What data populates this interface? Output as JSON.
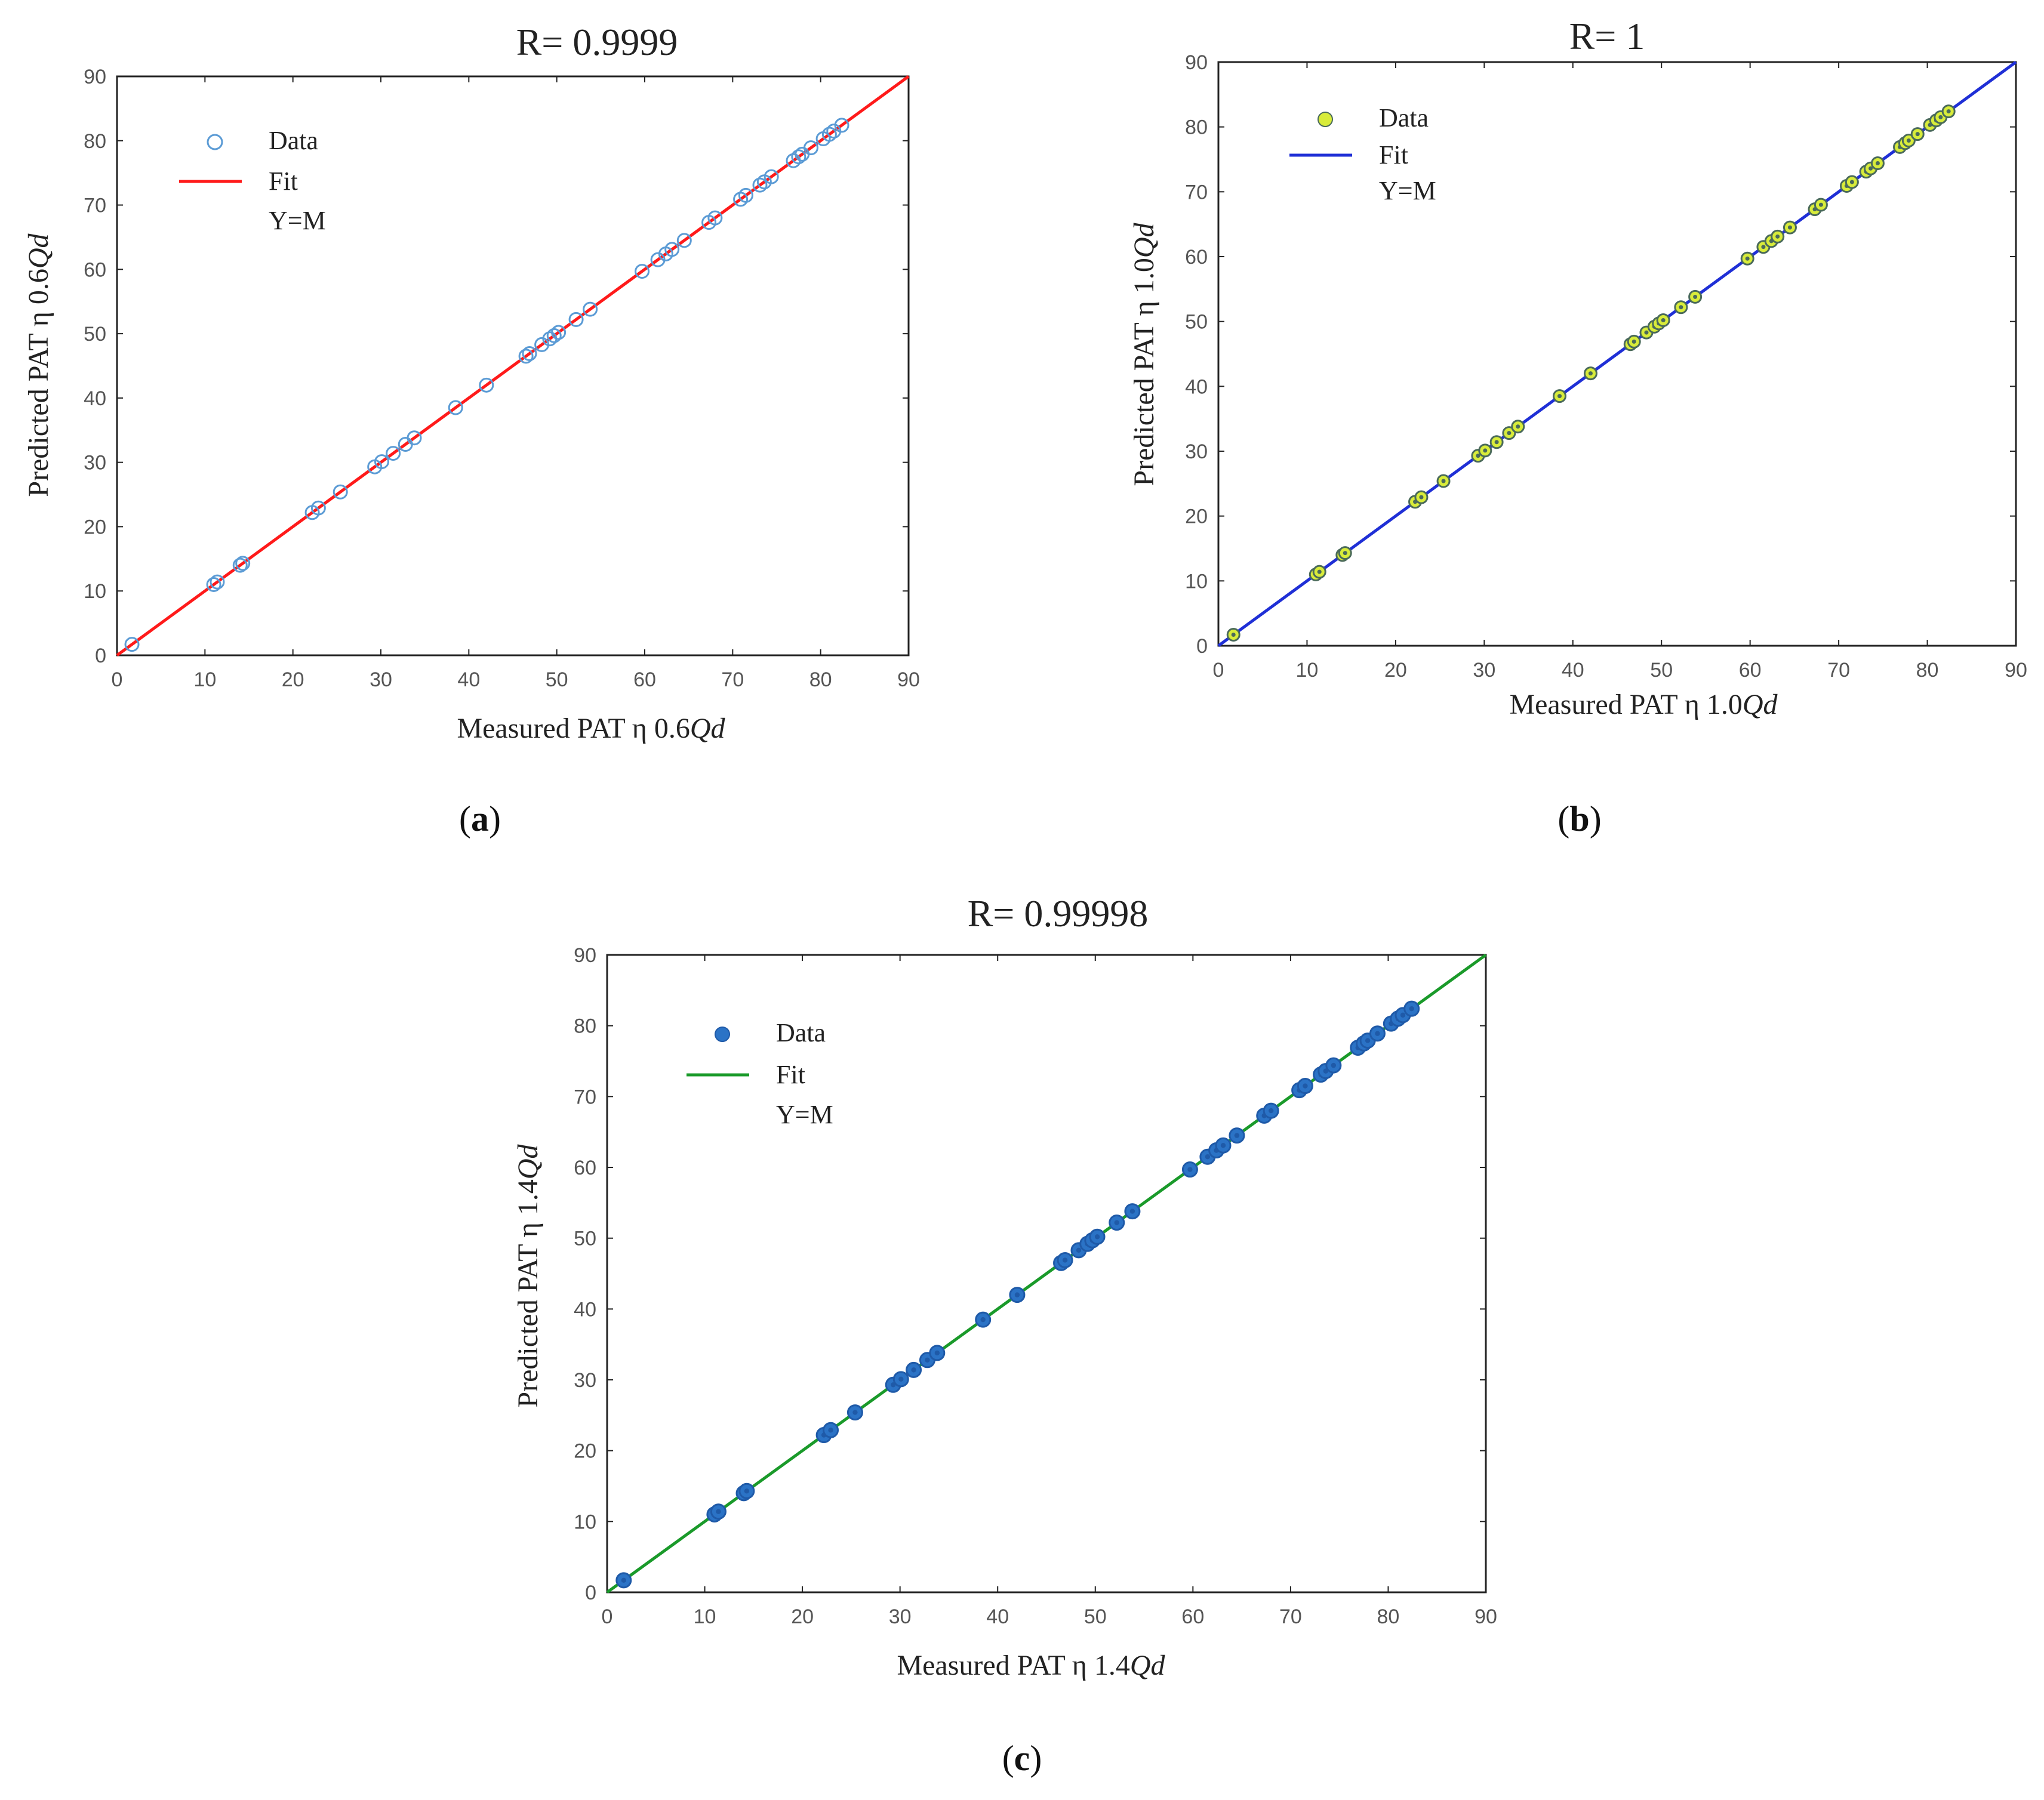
{
  "figure": {
    "panels": [
      {
        "label_open": "(",
        "label_letter": "a",
        "label_close": ")"
      },
      {
        "label_open": "(",
        "label_letter": "b",
        "label_close": ")"
      },
      {
        "label_open": "(",
        "label_letter": "c",
        "label_close": ")"
      }
    ]
  },
  "chart_data": [
    {
      "type": "scatter",
      "panel": "a",
      "title": "R= 0.9999",
      "xlabel_text": "Measured PAT η 0.6",
      "xlabel_ital": "Qd",
      "ylabel_text": "Predicted PAT η 0.6",
      "ylabel_ital": "Qd",
      "xlim": [
        0,
        90
      ],
      "ylim": [
        0,
        90
      ],
      "xticks": [
        "0",
        "10",
        "20",
        "30",
        "40",
        "50",
        "60",
        "70",
        "80",
        "90"
      ],
      "yticks": [
        "0",
        "10",
        "20",
        "30",
        "40",
        "50",
        "60",
        "70",
        "80",
        "90"
      ],
      "grid": false,
      "legend_position": "top-left",
      "legend": {
        "data": "Data",
        "fit": "Fit",
        "ref": "Y=M"
      },
      "colors": {
        "fit": "#ff1a1a",
        "marker_stroke": "#5b9bd5",
        "marker_fill": "none",
        "marker_inner": "#5b9bd5"
      },
      "series": [
        {
          "name": "Data",
          "x": [
            1.7,
            11.0,
            11.4,
            14.0,
            14.3,
            22.2,
            22.9,
            25.4,
            29.3,
            30.1,
            31.4,
            32.8,
            33.8,
            38.5,
            42.0,
            46.5,
            46.9,
            48.3,
            49.2,
            49.7,
            50.2,
            52.2,
            53.8,
            59.7,
            61.5,
            62.4,
            63.1,
            64.5,
            67.3,
            68.0,
            70.9,
            71.5,
            73.1,
            73.6,
            74.4,
            76.9,
            77.5,
            77.9,
            78.9,
            80.3,
            81.0,
            81.5,
            82.4
          ],
          "y": [
            1.7,
            11.0,
            11.4,
            14.0,
            14.3,
            22.2,
            22.9,
            25.4,
            29.3,
            30.1,
            31.4,
            32.8,
            33.8,
            38.5,
            42.0,
            46.5,
            46.9,
            48.3,
            49.2,
            49.7,
            50.2,
            52.2,
            53.8,
            59.7,
            61.5,
            62.4,
            63.1,
            64.5,
            67.3,
            68.0,
            70.9,
            71.5,
            73.1,
            73.6,
            74.4,
            76.9,
            77.5,
            77.9,
            78.9,
            80.3,
            81.0,
            81.5,
            82.4
          ]
        },
        {
          "name": "Fit",
          "x": [
            0,
            90
          ],
          "y": [
            0,
            90
          ]
        }
      ]
    },
    {
      "type": "scatter",
      "panel": "b",
      "title": "R= 1",
      "xlabel_text": "Measured PAT η 1.0",
      "xlabel_ital": "Qd",
      "ylabel_text": "Predicted PAT η 1.0",
      "ylabel_ital": "Qd",
      "xlim": [
        0,
        90
      ],
      "ylim": [
        0,
        90
      ],
      "xticks": [
        "0",
        "10",
        "20",
        "30",
        "40",
        "50",
        "60",
        "70",
        "80",
        "90"
      ],
      "yticks": [
        "0",
        "10",
        "20",
        "30",
        "40",
        "50",
        "60",
        "70",
        "80",
        "90"
      ],
      "grid": false,
      "legend_position": "top-left",
      "legend": {
        "data": "Data",
        "fit": "Fit",
        "ref": "Y=M"
      },
      "colors": {
        "fit": "#1f2fd6",
        "marker_stroke": "#4a6a5a",
        "marker_fill": "#d8ec3a",
        "marker_inner": "#4a6a5a"
      },
      "series": [
        {
          "name": "Data",
          "x": [
            1.7,
            11.0,
            11.4,
            14.0,
            14.3,
            22.2,
            22.9,
            25.4,
            29.3,
            30.1,
            31.4,
            32.8,
            33.8,
            38.5,
            42.0,
            46.5,
            46.9,
            48.3,
            49.2,
            49.7,
            50.2,
            52.2,
            53.8,
            59.7,
            61.5,
            62.4,
            63.1,
            64.5,
            67.3,
            68.0,
            70.9,
            71.5,
            73.1,
            73.6,
            74.4,
            76.9,
            77.5,
            77.9,
            78.9,
            80.3,
            81.0,
            81.5,
            82.4
          ],
          "y": [
            1.7,
            11.0,
            11.4,
            14.0,
            14.3,
            22.2,
            22.9,
            25.4,
            29.3,
            30.1,
            31.4,
            32.8,
            33.8,
            38.5,
            42.0,
            46.5,
            46.9,
            48.3,
            49.2,
            49.7,
            50.2,
            52.2,
            53.8,
            59.7,
            61.5,
            62.4,
            63.1,
            64.5,
            67.3,
            68.0,
            70.9,
            71.5,
            73.1,
            73.6,
            74.4,
            76.9,
            77.5,
            77.9,
            78.9,
            80.3,
            81.0,
            81.5,
            82.4
          ]
        },
        {
          "name": "Fit",
          "x": [
            0,
            90
          ],
          "y": [
            0,
            90
          ]
        }
      ]
    },
    {
      "type": "scatter",
      "panel": "c",
      "title": "R= 0.99998",
      "xlabel_text": "Measured PAT η 1.4",
      "xlabel_ital": "Qd",
      "ylabel_text": "Predicted PAT η 1.4",
      "ylabel_ital": "Qd",
      "xlim": [
        0,
        90
      ],
      "ylim": [
        0,
        90
      ],
      "xticks": [
        "0",
        "10",
        "20",
        "30",
        "40",
        "50",
        "60",
        "70",
        "80",
        "90"
      ],
      "yticks": [
        "0",
        "10",
        "20",
        "30",
        "40",
        "50",
        "60",
        "70",
        "80",
        "90"
      ],
      "grid": false,
      "legend_position": "top-left",
      "legend": {
        "data": "Data",
        "fit": "Fit",
        "ref": "Y=M"
      },
      "colors": {
        "fit": "#1a9a2a",
        "marker_stroke": "#1f5aa8",
        "marker_fill": "#2b73c6",
        "marker_inner": "#1f5aa8"
      },
      "series": [
        {
          "name": "Data",
          "x": [
            1.7,
            11.0,
            11.4,
            14.0,
            14.3,
            22.2,
            22.9,
            25.4,
            29.3,
            30.1,
            31.4,
            32.8,
            33.8,
            38.5,
            42.0,
            46.5,
            46.9,
            48.3,
            49.2,
            49.7,
            50.2,
            52.2,
            53.8,
            59.7,
            61.5,
            62.4,
            63.1,
            64.5,
            67.3,
            68.0,
            70.9,
            71.5,
            73.1,
            73.6,
            74.4,
            76.9,
            77.5,
            77.9,
            78.9,
            80.3,
            81.0,
            81.5,
            82.4
          ],
          "y": [
            1.7,
            11.0,
            11.4,
            14.0,
            14.3,
            22.2,
            22.9,
            25.4,
            29.3,
            30.1,
            31.4,
            32.8,
            33.8,
            38.5,
            42.0,
            46.5,
            46.9,
            48.3,
            49.2,
            49.7,
            50.2,
            52.2,
            53.8,
            59.7,
            61.5,
            62.4,
            63.1,
            64.5,
            67.3,
            68.0,
            70.9,
            71.5,
            73.1,
            73.6,
            74.4,
            76.9,
            77.5,
            77.9,
            78.9,
            80.3,
            81.0,
            81.5,
            82.4
          ]
        },
        {
          "name": "Fit",
          "x": [
            0,
            90
          ],
          "y": [
            0,
            90
          ]
        }
      ]
    }
  ]
}
